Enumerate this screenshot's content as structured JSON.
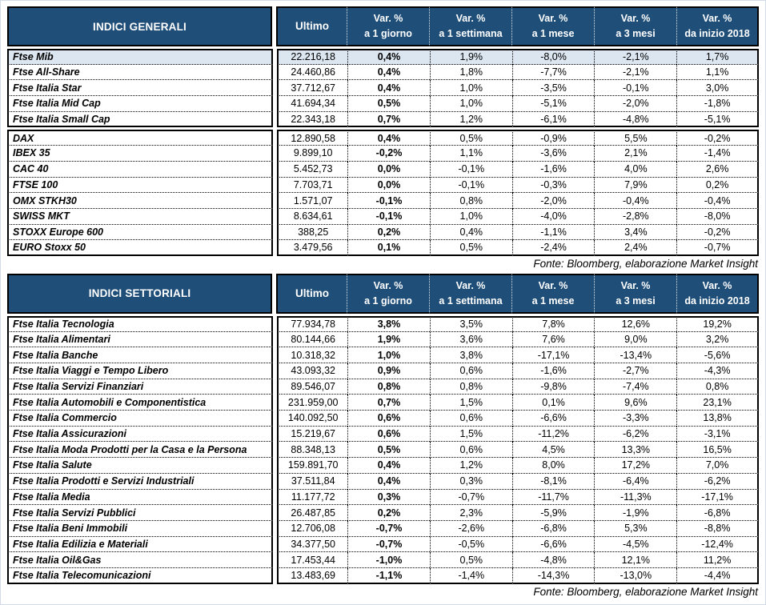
{
  "colors": {
    "header_bg": "#1F4E79",
    "header_text": "#ffffff",
    "highlight_row_bg": "#dce6f1",
    "border": "#000000"
  },
  "columns": {
    "ultimo": "Ultimo",
    "var_label": "Var. %",
    "periods": [
      "a 1 giorno",
      "a 1 settimana",
      "a 1 mese",
      "a 3 mesi",
      "da inizio 2018"
    ]
  },
  "tables": [
    {
      "title": "INDICI GENERALI",
      "fonte": "Fonte: Bloomberg, elaborazione Market Insight",
      "groups": [
        {
          "rows": [
            {
              "name": "Ftse Mib",
              "highlight": true,
              "values": [
                "22.216,18",
                "0,4%",
                "1,9%",
                "-8,0%",
                "-2,1%",
                "1,7%"
              ]
            },
            {
              "name": "Ftse All-Share",
              "highlight": false,
              "values": [
                "24.460,86",
                "0,4%",
                "1,8%",
                "-7,7%",
                "-2,1%",
                "1,1%"
              ]
            },
            {
              "name": "Ftse Italia Star",
              "highlight": false,
              "values": [
                "37.712,67",
                "0,4%",
                "1,0%",
                "-3,5%",
                "-0,1%",
                "3,0%"
              ]
            },
            {
              "name": "Ftse Italia Mid Cap",
              "highlight": false,
              "values": [
                "41.694,34",
                "0,5%",
                "1,0%",
                "-5,1%",
                "-2,0%",
                "-1,8%"
              ]
            },
            {
              "name": "Ftse Italia Small Cap",
              "highlight": false,
              "values": [
                "22.343,18",
                "0,7%",
                "1,2%",
                "-6,1%",
                "-4,8%",
                "-5,1%"
              ]
            }
          ]
        },
        {
          "rows": [
            {
              "name": "DAX",
              "highlight": false,
              "values": [
                "12.890,58",
                "0,4%",
                "0,5%",
                "-0,9%",
                "5,5%",
                "-0,2%"
              ]
            },
            {
              "name": "IBEX 35",
              "highlight": false,
              "values": [
                "9.899,10",
                "-0,2%",
                "1,1%",
                "-3,6%",
                "2,1%",
                "-1,4%"
              ]
            },
            {
              "name": "CAC 40",
              "highlight": false,
              "values": [
                "5.452,73",
                "0,0%",
                "-0,1%",
                "-1,6%",
                "4,0%",
                "2,6%"
              ]
            },
            {
              "name": "FTSE 100",
              "highlight": false,
              "values": [
                "7.703,71",
                "0,0%",
                "-0,1%",
                "-0,3%",
                "7,9%",
                "0,2%"
              ]
            },
            {
              "name": "OMX STKH30",
              "highlight": false,
              "values": [
                "1.571,07",
                "-0,1%",
                "0,8%",
                "-2,0%",
                "-0,4%",
                "-0,4%"
              ]
            },
            {
              "name": "SWISS MKT",
              "highlight": false,
              "values": [
                "8.634,61",
                "-0,1%",
                "1,0%",
                "-4,0%",
                "-2,8%",
                "-8,0%"
              ]
            },
            {
              "name": "STOXX Europe 600",
              "highlight": false,
              "values": [
                "388,25",
                "0,2%",
                "0,4%",
                "-1,1%",
                "3,4%",
                "-0,2%"
              ]
            },
            {
              "name": "EURO Stoxx 50",
              "highlight": false,
              "values": [
                "3.479,56",
                "0,1%",
                "0,5%",
                "-2,4%",
                "2,4%",
                "-0,7%"
              ]
            }
          ]
        }
      ]
    },
    {
      "title": "INDICI SETTORIALI",
      "fonte": "Fonte: Bloomberg, elaborazione Market Insight",
      "groups": [
        {
          "rows": [
            {
              "name": "Ftse Italia Tecnologia",
              "highlight": false,
              "values": [
                "77.934,78",
                "3,8%",
                "3,5%",
                "7,8%",
                "12,6%",
                "19,2%"
              ]
            },
            {
              "name": "Ftse Italia Alimentari",
              "highlight": false,
              "values": [
                "80.144,66",
                "1,9%",
                "3,6%",
                "7,6%",
                "9,0%",
                "3,2%"
              ]
            },
            {
              "name": "Ftse Italia Banche",
              "highlight": false,
              "values": [
                "10.318,32",
                "1,0%",
                "3,8%",
                "-17,1%",
                "-13,4%",
                "-5,6%"
              ]
            },
            {
              "name": "Ftse Italia Viaggi e Tempo Libero",
              "highlight": false,
              "values": [
                "43.093,32",
                "0,9%",
                "0,6%",
                "-1,6%",
                "-2,7%",
                "-4,3%"
              ]
            },
            {
              "name": "Ftse Italia Servizi Finanziari",
              "highlight": false,
              "values": [
                "89.546,07",
                "0,8%",
                "0,8%",
                "-9,8%",
                "-7,4%",
                "0,8%"
              ]
            },
            {
              "name": "Ftse Italia Automobili e Componentistica",
              "highlight": false,
              "values": [
                "231.959,00",
                "0,7%",
                "1,5%",
                "0,1%",
                "9,6%",
                "23,1%"
              ]
            },
            {
              "name": "Ftse Italia Commercio",
              "highlight": false,
              "values": [
                "140.092,50",
                "0,6%",
                "0,6%",
                "-6,6%",
                "-3,3%",
                "13,8%"
              ]
            },
            {
              "name": "Ftse Italia Assicurazioni",
              "highlight": false,
              "values": [
                "15.219,67",
                "0,6%",
                "1,5%",
                "-11,2%",
                "-6,2%",
                "-3,1%"
              ]
            },
            {
              "name": "Ftse Italia Moda Prodotti per la Casa e la Persona",
              "highlight": false,
              "values": [
                "88.348,13",
                "0,5%",
                "0,6%",
                "4,5%",
                "13,3%",
                "16,5%"
              ]
            },
            {
              "name": "Ftse Italia Salute",
              "highlight": false,
              "values": [
                "159.891,70",
                "0,4%",
                "1,2%",
                "8,0%",
                "17,2%",
                "7,0%"
              ]
            },
            {
              "name": "Ftse Italia Prodotti e Servizi Industriali",
              "highlight": false,
              "values": [
                "37.511,84",
                "0,4%",
                "0,3%",
                "-8,1%",
                "-6,4%",
                "-6,2%"
              ]
            },
            {
              "name": "Ftse Italia Media",
              "highlight": false,
              "values": [
                "11.177,72",
                "0,3%",
                "-0,7%",
                "-11,7%",
                "-11,3%",
                "-17,1%"
              ]
            },
            {
              "name": "Ftse Italia Servizi Pubblici",
              "highlight": false,
              "values": [
                "26.487,85",
                "0,2%",
                "2,3%",
                "-5,9%",
                "-1,9%",
                "-6,8%"
              ]
            },
            {
              "name": "Ftse Italia Beni Immobili",
              "highlight": false,
              "values": [
                "12.706,08",
                "-0,7%",
                "-2,6%",
                "-6,8%",
                "5,3%",
                "-8,8%"
              ]
            },
            {
              "name": "Ftse Italia Edilizia e Materiali",
              "highlight": false,
              "values": [
                "34.377,50",
                "-0,7%",
                "-0,5%",
                "-6,6%",
                "-4,5%",
                "-12,4%"
              ]
            },
            {
              "name": "Ftse Italia Oil&Gas",
              "highlight": false,
              "values": [
                "17.453,44",
                "-1,0%",
                "0,5%",
                "-4,8%",
                "12,1%",
                "11,2%"
              ]
            },
            {
              "name": "Ftse Italia Telecomunicazioni",
              "highlight": false,
              "values": [
                "13.483,69",
                "-1,1%",
                "-1,4%",
                "-14,3%",
                "-13,0%",
                "-4,4%"
              ]
            }
          ]
        }
      ]
    }
  ]
}
